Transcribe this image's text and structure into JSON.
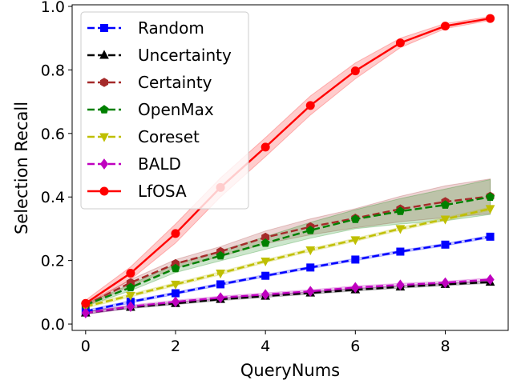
{
  "chart_data": {
    "type": "line",
    "title": "",
    "xlabel": "QueryNums",
    "ylabel": "Selection Recall",
    "xlim": [
      -0.3,
      9.4
    ],
    "ylim": [
      -0.02,
      1.005
    ],
    "xticks": [
      0,
      2,
      4,
      6,
      8
    ],
    "yticks": [
      0.0,
      0.2,
      0.4,
      0.6,
      0.8,
      1.0
    ],
    "xtick_labels": [
      "0",
      "2",
      "4",
      "6",
      "8"
    ],
    "ytick_labels": [
      "0.0",
      "0.2",
      "0.4",
      "0.6",
      "0.8",
      "1.0"
    ],
    "legend_position": "top-left",
    "x": [
      0,
      1,
      2,
      3,
      4,
      5,
      6,
      7,
      8,
      9
    ],
    "series": [
      {
        "name": "Random",
        "color": "#0000ff",
        "dashed": true,
        "marker": "square",
        "values": [
          0.04,
          0.07,
          0.097,
          0.125,
          0.152,
          0.178,
          0.203,
          0.228,
          0.25,
          0.275
        ],
        "band": 0.004
      },
      {
        "name": "Uncertainty",
        "color": "#000000",
        "dashed": true,
        "marker": "triangle-up",
        "values": [
          0.035,
          0.053,
          0.065,
          0.078,
          0.088,
          0.098,
          0.108,
          0.117,
          0.125,
          0.132
        ],
        "band": 0.004
      },
      {
        "name": "Certainty",
        "color": "#a52a2a",
        "dashed": true,
        "marker": "hexagon",
        "values": [
          0.06,
          0.13,
          0.19,
          0.228,
          0.273,
          0.306,
          0.333,
          0.362,
          0.385,
          0.402
        ],
        "band": [
          0.004,
          0.01,
          0.013,
          0.016,
          0.02,
          0.025,
          0.03,
          0.04,
          0.05,
          0.055
        ]
      },
      {
        "name": "OpenMax",
        "color": "#008000",
        "dashed": true,
        "marker": "pentagon",
        "values": [
          0.06,
          0.115,
          0.175,
          0.215,
          0.255,
          0.295,
          0.33,
          0.355,
          0.375,
          0.4
        ],
        "band": [
          0.004,
          0.01,
          0.013,
          0.016,
          0.02,
          0.025,
          0.03,
          0.04,
          0.05,
          0.055
        ]
      },
      {
        "name": "Coreset",
        "color": "#bfbf00",
        "dashed": true,
        "marker": "triangle-down",
        "values": [
          0.055,
          0.09,
          0.125,
          0.16,
          0.198,
          0.233,
          0.265,
          0.3,
          0.33,
          0.363
        ],
        "band": 0.005
      },
      {
        "name": "BALD",
        "color": "#bf00bf",
        "dashed": true,
        "marker": "diamond",
        "values": [
          0.035,
          0.055,
          0.07,
          0.083,
          0.093,
          0.103,
          0.115,
          0.123,
          0.13,
          0.14
        ],
        "band": 0.005
      },
      {
        "name": "LfOSA",
        "color": "#ff0000",
        "dashed": false,
        "marker": "circle",
        "values": [
          0.065,
          0.16,
          0.285,
          0.43,
          0.557,
          0.688,
          0.797,
          0.885,
          0.938,
          0.962
        ],
        "band": [
          0.01,
          0.02,
          0.03,
          0.03,
          0.03,
          0.03,
          0.025,
          0.015,
          0.008,
          0.006
        ]
      }
    ]
  }
}
